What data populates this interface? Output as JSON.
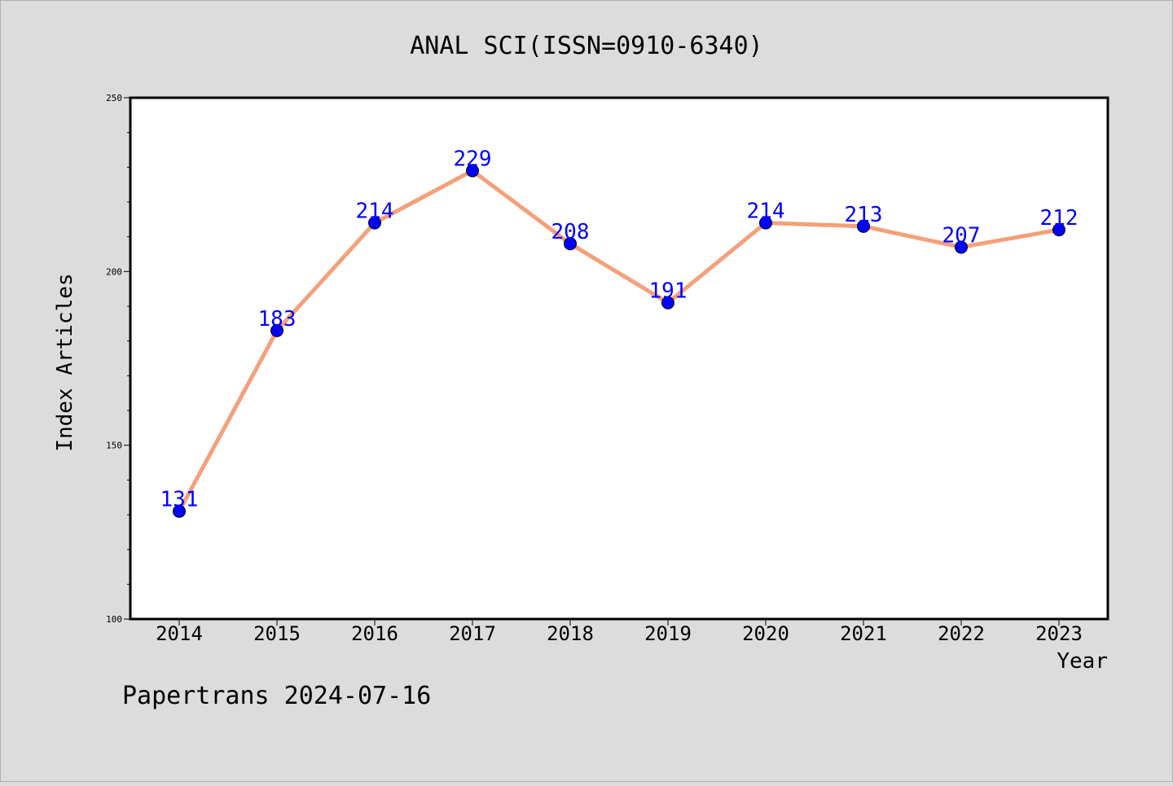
{
  "chart_data": {
    "type": "line",
    "title": "ANAL SCI(ISSN=0910-6340)",
    "xlabel": "Year",
    "ylabel": "Index Articles",
    "categories": [
      "2014",
      "2015",
      "2016",
      "2017",
      "2018",
      "2019",
      "2020",
      "2021",
      "2022",
      "2023"
    ],
    "series": [
      {
        "values": [
          131,
          183,
          214,
          229,
          208,
          191,
          214,
          213,
          207,
          212
        ],
        "line_color": "#f4a07a",
        "marker_color": "#0000ff"
      }
    ],
    "ylim": [
      100,
      250
    ],
    "yticks": [
      100,
      150,
      200,
      250
    ],
    "data_labels": [
      "131",
      "183",
      "214",
      "229",
      "208",
      "191",
      "214",
      "213",
      "207",
      "212"
    ],
    "grid": false,
    "legend": "none"
  },
  "footer": {
    "text": "Papertrans 2024-07-16"
  },
  "colors": {
    "background": "#dcdcdc",
    "plot_background": "#ffffff",
    "data_label": "#0000ff"
  }
}
